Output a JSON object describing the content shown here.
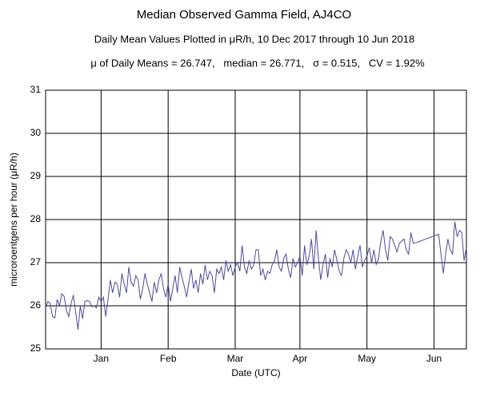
{
  "chart_data": {
    "type": "line",
    "title": "Median Observed Gamma Field, AJ4CO",
    "subtitle": "Daily Mean Values Plotted in μR/h, 10 Dec 2017 through 10 Jun 2018",
    "stats": "μ of Daily Means = 26.747,   median = 26.771,   σ = 0.515,   CV = 1.92%",
    "y_label": "microroentgens per hour (μR/h)",
    "x_label": "Date (UTC)",
    "categories": [
      null,
      null,
      null,
      null,
      null,
      null,
      null,
      null,
      null,
      null,
      null,
      null,
      null,
      null,
      null,
      null,
      null,
      null,
      null,
      null,
      null,
      null,
      null,
      null,
      "Jan",
      null,
      null,
      null,
      null,
      null,
      null,
      null,
      null,
      null,
      null,
      null,
      null,
      null,
      null,
      null,
      null,
      null,
      null,
      null,
      null,
      null,
      null,
      null,
      null,
      null,
      null,
      null,
      null,
      "Feb",
      null,
      null,
      null,
      null,
      null,
      null,
      null,
      null,
      null,
      null,
      null,
      null,
      null,
      null,
      null,
      null,
      null,
      null,
      null,
      null,
      null,
      null,
      null,
      null,
      null,
      null,
      null,
      null,
      "Mar",
      null,
      null,
      null,
      null,
      null,
      null,
      null,
      null,
      null,
      null,
      null,
      null,
      null,
      null,
      null,
      null,
      null,
      null,
      null,
      null,
      null,
      null,
      null,
      null,
      null,
      null,
      null,
      "Apr",
      null,
      null,
      null,
      null,
      null,
      null,
      null,
      null,
      null,
      null,
      null,
      null,
      null,
      null,
      null,
      null,
      null,
      null,
      null,
      null,
      null,
      null,
      null,
      null,
      null,
      null,
      null,
      null,
      "May",
      null,
      null,
      null,
      null,
      null,
      null,
      null,
      null,
      null,
      null,
      null,
      null,
      null,
      null,
      null,
      null,
      null,
      null,
      null,
      null,
      null,
      null,
      null,
      null,
      null,
      null,
      null,
      null,
      "Jun",
      null,
      null,
      null,
      null,
      null,
      null,
      null,
      null,
      null,
      null,
      null,
      null,
      null,
      null
    ],
    "series": [
      {
        "name": "Daily Mean",
        "color": "#4b4b9b",
        "values": [
          25.95,
          26.1,
          26.05,
          25.75,
          25.72,
          26.15,
          26.0,
          26.28,
          26.22,
          25.9,
          25.75,
          26.05,
          26.25,
          25.85,
          25.45,
          26.0,
          25.7,
          26.1,
          26.12,
          26.1,
          25.98,
          26.0,
          25.95,
          26.2,
          26.1,
          26.2,
          25.75,
          26.15,
          26.6,
          26.3,
          26.55,
          26.5,
          26.2,
          26.75,
          26.5,
          26.3,
          26.9,
          26.55,
          26.45,
          26.7,
          26.6,
          26.15,
          26.4,
          26.75,
          26.5,
          26.3,
          26.1,
          26.55,
          26.3,
          26.6,
          26.75,
          26.4,
          26.2,
          26.5,
          26.1,
          26.4,
          26.7,
          26.3,
          26.9,
          26.65,
          26.45,
          26.2,
          26.55,
          26.85,
          26.4,
          26.6,
          26.3,
          26.75,
          26.5,
          26.95,
          26.6,
          26.8,
          26.7,
          26.3,
          26.85,
          26.75,
          26.9,
          26.6,
          27.05,
          26.8,
          26.95,
          26.7,
          26.9,
          27.0,
          26.8,
          27.4,
          26.9,
          26.75,
          27.05,
          26.85,
          26.95,
          27.3,
          27.3,
          26.7,
          26.85,
          26.6,
          26.8,
          26.75,
          26.95,
          27.05,
          27.3,
          26.9,
          26.8,
          27.1,
          27.2,
          26.85,
          26.65,
          27.1,
          26.9,
          27.0,
          27.15,
          26.7,
          27.4,
          26.95,
          27.15,
          27.55,
          26.85,
          27.75,
          27.1,
          26.6,
          26.95,
          27.2,
          26.65,
          27.1,
          26.9,
          27.3,
          27.05,
          26.8,
          26.7,
          27.1,
          27.3,
          27.2,
          27.0,
          27.3,
          26.85,
          27.15,
          27.4,
          26.9,
          27.05,
          27.15,
          27.35,
          27.0,
          27.3,
          26.95,
          27.1,
          27.5,
          27.75,
          27.3,
          27.05,
          27.6,
          27.55,
          27.4,
          27.25,
          27.45,
          27.5,
          27.55,
          27.3,
          27.2,
          27.7,
          27.45,
          27.46,
          27.48,
          27.5,
          27.52,
          27.54,
          27.56,
          27.58,
          27.6,
          27.62,
          27.64,
          27.66,
          27.2,
          26.75,
          27.2,
          27.55,
          27.3,
          27.2,
          27.95,
          27.6,
          27.75,
          27.7,
          27.05,
          27.35
        ]
      }
    ],
    "ylim": [
      25,
      31
    ],
    "yticks": [
      25,
      26,
      27,
      28,
      29,
      30,
      31
    ],
    "grid": true
  }
}
